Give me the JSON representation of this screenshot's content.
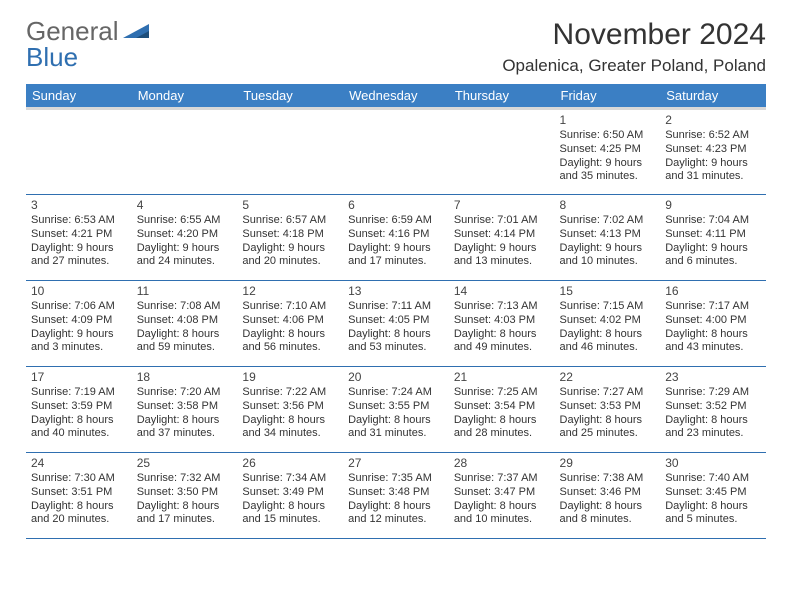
{
  "logo": {
    "text1": "General",
    "text2": "Blue"
  },
  "header": {
    "title": "November 2024",
    "location": "Opalenica, Greater Poland, Poland"
  },
  "colors": {
    "header_bg": "#3b7fc4",
    "header_text": "#ffffff",
    "row_border": "#2f6fb0",
    "logo_gray": "#666666",
    "logo_blue": "#2f6fb0",
    "background": "#ffffff",
    "text": "#333333"
  },
  "day_labels": [
    "Sunday",
    "Monday",
    "Tuesday",
    "Wednesday",
    "Thursday",
    "Friday",
    "Saturday"
  ],
  "weeks": [
    [
      null,
      null,
      null,
      null,
      null,
      {
        "n": "1",
        "sr": "Sunrise: 6:50 AM",
        "ss": "Sunset: 4:25 PM",
        "d1": "Daylight: 9 hours",
        "d2": "and 35 minutes."
      },
      {
        "n": "2",
        "sr": "Sunrise: 6:52 AM",
        "ss": "Sunset: 4:23 PM",
        "d1": "Daylight: 9 hours",
        "d2": "and 31 minutes."
      }
    ],
    [
      {
        "n": "3",
        "sr": "Sunrise: 6:53 AM",
        "ss": "Sunset: 4:21 PM",
        "d1": "Daylight: 9 hours",
        "d2": "and 27 minutes."
      },
      {
        "n": "4",
        "sr": "Sunrise: 6:55 AM",
        "ss": "Sunset: 4:20 PM",
        "d1": "Daylight: 9 hours",
        "d2": "and 24 minutes."
      },
      {
        "n": "5",
        "sr": "Sunrise: 6:57 AM",
        "ss": "Sunset: 4:18 PM",
        "d1": "Daylight: 9 hours",
        "d2": "and 20 minutes."
      },
      {
        "n": "6",
        "sr": "Sunrise: 6:59 AM",
        "ss": "Sunset: 4:16 PM",
        "d1": "Daylight: 9 hours",
        "d2": "and 17 minutes."
      },
      {
        "n": "7",
        "sr": "Sunrise: 7:01 AM",
        "ss": "Sunset: 4:14 PM",
        "d1": "Daylight: 9 hours",
        "d2": "and 13 minutes."
      },
      {
        "n": "8",
        "sr": "Sunrise: 7:02 AM",
        "ss": "Sunset: 4:13 PM",
        "d1": "Daylight: 9 hours",
        "d2": "and 10 minutes."
      },
      {
        "n": "9",
        "sr": "Sunrise: 7:04 AM",
        "ss": "Sunset: 4:11 PM",
        "d1": "Daylight: 9 hours",
        "d2": "and 6 minutes."
      }
    ],
    [
      {
        "n": "10",
        "sr": "Sunrise: 7:06 AM",
        "ss": "Sunset: 4:09 PM",
        "d1": "Daylight: 9 hours",
        "d2": "and 3 minutes."
      },
      {
        "n": "11",
        "sr": "Sunrise: 7:08 AM",
        "ss": "Sunset: 4:08 PM",
        "d1": "Daylight: 8 hours",
        "d2": "and 59 minutes."
      },
      {
        "n": "12",
        "sr": "Sunrise: 7:10 AM",
        "ss": "Sunset: 4:06 PM",
        "d1": "Daylight: 8 hours",
        "d2": "and 56 minutes."
      },
      {
        "n": "13",
        "sr": "Sunrise: 7:11 AM",
        "ss": "Sunset: 4:05 PM",
        "d1": "Daylight: 8 hours",
        "d2": "and 53 minutes."
      },
      {
        "n": "14",
        "sr": "Sunrise: 7:13 AM",
        "ss": "Sunset: 4:03 PM",
        "d1": "Daylight: 8 hours",
        "d2": "and 49 minutes."
      },
      {
        "n": "15",
        "sr": "Sunrise: 7:15 AM",
        "ss": "Sunset: 4:02 PM",
        "d1": "Daylight: 8 hours",
        "d2": "and 46 minutes."
      },
      {
        "n": "16",
        "sr": "Sunrise: 7:17 AM",
        "ss": "Sunset: 4:00 PM",
        "d1": "Daylight: 8 hours",
        "d2": "and 43 minutes."
      }
    ],
    [
      {
        "n": "17",
        "sr": "Sunrise: 7:19 AM",
        "ss": "Sunset: 3:59 PM",
        "d1": "Daylight: 8 hours",
        "d2": "and 40 minutes."
      },
      {
        "n": "18",
        "sr": "Sunrise: 7:20 AM",
        "ss": "Sunset: 3:58 PM",
        "d1": "Daylight: 8 hours",
        "d2": "and 37 minutes."
      },
      {
        "n": "19",
        "sr": "Sunrise: 7:22 AM",
        "ss": "Sunset: 3:56 PM",
        "d1": "Daylight: 8 hours",
        "d2": "and 34 minutes."
      },
      {
        "n": "20",
        "sr": "Sunrise: 7:24 AM",
        "ss": "Sunset: 3:55 PM",
        "d1": "Daylight: 8 hours",
        "d2": "and 31 minutes."
      },
      {
        "n": "21",
        "sr": "Sunrise: 7:25 AM",
        "ss": "Sunset: 3:54 PM",
        "d1": "Daylight: 8 hours",
        "d2": "and 28 minutes."
      },
      {
        "n": "22",
        "sr": "Sunrise: 7:27 AM",
        "ss": "Sunset: 3:53 PM",
        "d1": "Daylight: 8 hours",
        "d2": "and 25 minutes."
      },
      {
        "n": "23",
        "sr": "Sunrise: 7:29 AM",
        "ss": "Sunset: 3:52 PM",
        "d1": "Daylight: 8 hours",
        "d2": "and 23 minutes."
      }
    ],
    [
      {
        "n": "24",
        "sr": "Sunrise: 7:30 AM",
        "ss": "Sunset: 3:51 PM",
        "d1": "Daylight: 8 hours",
        "d2": "and 20 minutes."
      },
      {
        "n": "25",
        "sr": "Sunrise: 7:32 AM",
        "ss": "Sunset: 3:50 PM",
        "d1": "Daylight: 8 hours",
        "d2": "and 17 minutes."
      },
      {
        "n": "26",
        "sr": "Sunrise: 7:34 AM",
        "ss": "Sunset: 3:49 PM",
        "d1": "Daylight: 8 hours",
        "d2": "and 15 minutes."
      },
      {
        "n": "27",
        "sr": "Sunrise: 7:35 AM",
        "ss": "Sunset: 3:48 PM",
        "d1": "Daylight: 8 hours",
        "d2": "and 12 minutes."
      },
      {
        "n": "28",
        "sr": "Sunrise: 7:37 AM",
        "ss": "Sunset: 3:47 PM",
        "d1": "Daylight: 8 hours",
        "d2": "and 10 minutes."
      },
      {
        "n": "29",
        "sr": "Sunrise: 7:38 AM",
        "ss": "Sunset: 3:46 PM",
        "d1": "Daylight: 8 hours",
        "d2": "and 8 minutes."
      },
      {
        "n": "30",
        "sr": "Sunrise: 7:40 AM",
        "ss": "Sunset: 3:45 PM",
        "d1": "Daylight: 8 hours",
        "d2": "and 5 minutes."
      }
    ]
  ]
}
